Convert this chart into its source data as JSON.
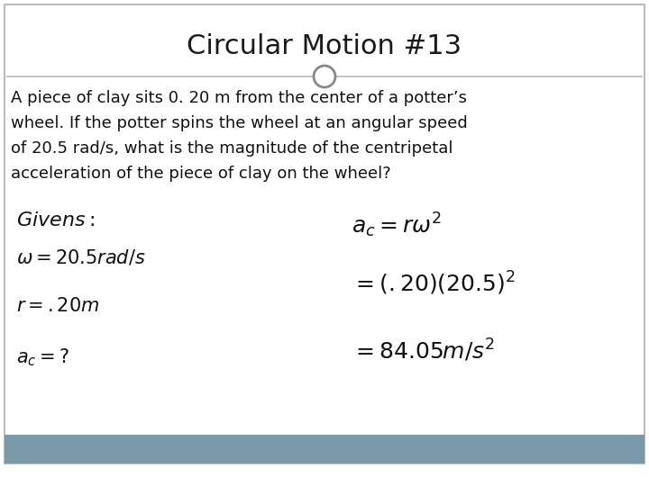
{
  "title": "Circular Motion #13",
  "problem_text": "A piece of clay sits 0. 20 m from the center of a potter’s\nwheel. If the potter spins the wheel at an angular speed\nof 20.5 rad/s, what is the magnitude of the centripetal\nacceleration of the piece of clay on the wheel?",
  "bg_color": "#ffffff",
  "title_color": "#1a1a1a",
  "text_color": "#111111",
  "border_color": "#bbbbbb",
  "footer_color": "#7a9aaa",
  "title_fontsize": 22,
  "body_fontsize": 13,
  "math_fontsize": 15
}
